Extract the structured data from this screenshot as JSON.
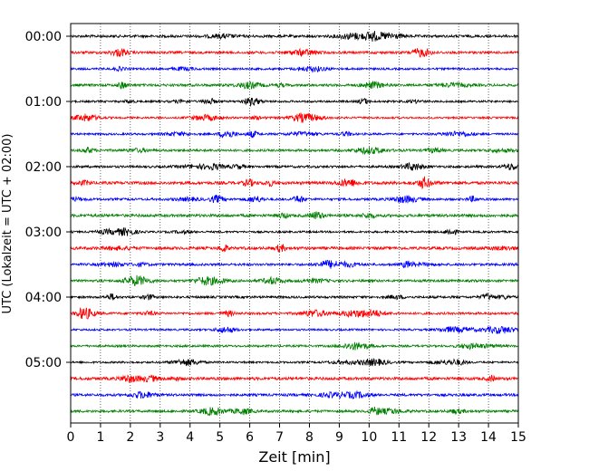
{
  "chart_data": {
    "type": "line",
    "title": "",
    "xlabel": "Zeit  [min]",
    "ylabel": "UTC (Lokalzeit = UTC + 02:00)",
    "xlim": [
      0,
      15
    ],
    "x_ticks": [
      0,
      1,
      2,
      3,
      4,
      5,
      6,
      7,
      8,
      9,
      10,
      11,
      12,
      13,
      14,
      15
    ],
    "y_tick_labels": [
      "00:00",
      "01:00",
      "02:00",
      "03:00",
      "04:00",
      "05:00"
    ],
    "y_tick_minutes": [
      0,
      60,
      120,
      180,
      240,
      300
    ],
    "trace_interval_minutes": 15,
    "trace_count": 24,
    "trace_colors": [
      "#000000",
      "#ff0000",
      "#0000ff",
      "#008000"
    ],
    "vertical_gridlines": "dotted",
    "legend": "none"
  }
}
